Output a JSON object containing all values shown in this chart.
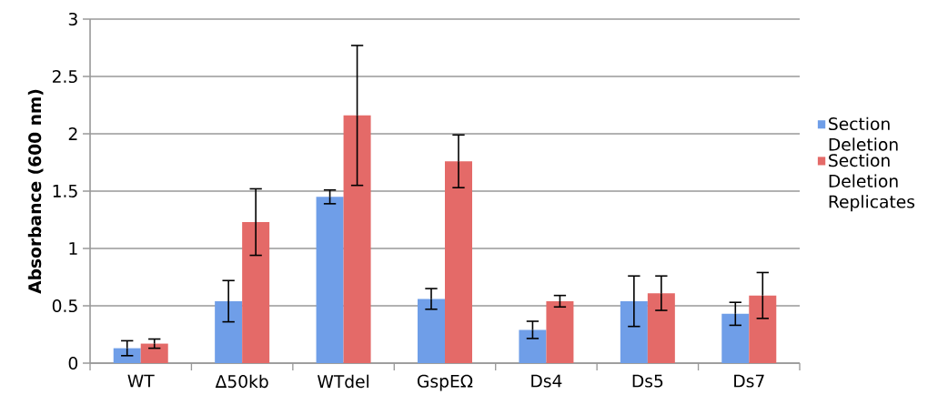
{
  "chart_data": {
    "type": "bar",
    "ylabel": "Absorbance (600 nm)",
    "categories": [
      "WT",
      "Δ50kb",
      "WTdel",
      "GspEΩ",
      "Ds4",
      "Ds5",
      "Ds7"
    ],
    "series": [
      {
        "name": "Section Deletion",
        "color": "#6f9ee8",
        "values": [
          0.13,
          0.54,
          1.45,
          0.56,
          0.29,
          0.54,
          0.43
        ],
        "errors": [
          0.065,
          0.18,
          0.06,
          0.09,
          0.075,
          0.22,
          0.1
        ]
      },
      {
        "name": "Section Deletion Replicates",
        "color": "#e46a68",
        "values": [
          0.17,
          1.23,
          2.16,
          1.76,
          0.54,
          0.61,
          0.59
        ],
        "errors": [
          0.04,
          0.29,
          0.61,
          0.23,
          0.05,
          0.15,
          0.2
        ]
      }
    ],
    "ylim": [
      0,
      3
    ],
    "yticks": [
      0,
      0.5,
      1,
      1.5,
      2,
      2.5,
      3
    ],
    "grid": "y",
    "legend": "right"
  }
}
